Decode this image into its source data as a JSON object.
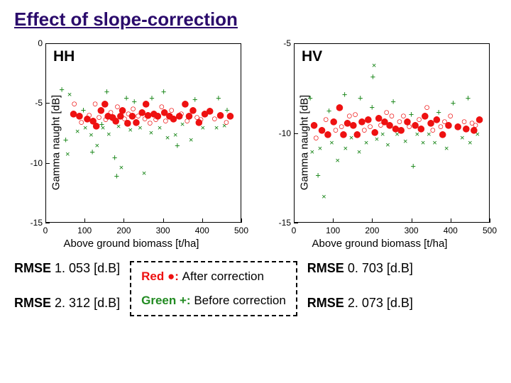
{
  "title": "Effect of slope-correction",
  "panels": [
    {
      "label": "HH",
      "ylabel": "Gamma naught [dB]",
      "xlabel": "Above ground biomass [t/ha]",
      "xlim": [
        0,
        500
      ],
      "xtick_step": 100,
      "ylim": [
        -15,
        0
      ],
      "ytick_step": 5
    },
    {
      "label": "HV",
      "ylabel": "Gamma naught [dB]",
      "xlabel": "Above ground biomass [t/ha]",
      "xlim": [
        0,
        500
      ],
      "xtick_step": 100,
      "ylim": [
        -15,
        -5
      ],
      "ytick_step": 5
    }
  ],
  "markers": {
    "plus": {
      "glyph": "+",
      "color": "#228b22",
      "meaning": "before-correction-1"
    },
    "x": {
      "glyph": "×",
      "color": "#228b22",
      "meaning": "before-correction-2"
    },
    "dot": {
      "glyph": "●",
      "color": "#ee1111",
      "meaning": "after-correction-filled"
    },
    "o": {
      "glyph": "○",
      "color": "#ee1111",
      "meaning": "after-correction-open"
    }
  },
  "points": {
    "HH": [
      {
        "x": 40,
        "y": -3.8,
        "m": "plus"
      },
      {
        "x": 50,
        "y": -8.0,
        "m": "plus"
      },
      {
        "x": 55,
        "y": -9.2,
        "m": "x"
      },
      {
        "x": 60,
        "y": -4.2,
        "m": "x"
      },
      {
        "x": 70,
        "y": -5.8,
        "m": "dot"
      },
      {
        "x": 72,
        "y": -5.0,
        "m": "o"
      },
      {
        "x": 80,
        "y": -7.3,
        "m": "x"
      },
      {
        "x": 85,
        "y": -6.0,
        "m": "dot"
      },
      {
        "x": 90,
        "y": -6.5,
        "m": "o"
      },
      {
        "x": 95,
        "y": -5.5,
        "m": "plus"
      },
      {
        "x": 100,
        "y": -7.0,
        "m": "x"
      },
      {
        "x": 105,
        "y": -6.2,
        "m": "dot"
      },
      {
        "x": 110,
        "y": -5.9,
        "m": "o"
      },
      {
        "x": 115,
        "y": -7.6,
        "m": "x"
      },
      {
        "x": 118,
        "y": -9.0,
        "m": "plus"
      },
      {
        "x": 120,
        "y": -6.4,
        "m": "dot"
      },
      {
        "x": 125,
        "y": -5.0,
        "m": "o"
      },
      {
        "x": 128,
        "y": -6.8,
        "m": "dot"
      },
      {
        "x": 130,
        "y": -8.5,
        "m": "x"
      },
      {
        "x": 135,
        "y": -6.1,
        "m": "o"
      },
      {
        "x": 140,
        "y": -5.5,
        "m": "dot"
      },
      {
        "x": 142,
        "y": -6.7,
        "m": "plus"
      },
      {
        "x": 145,
        "y": -7.0,
        "m": "x"
      },
      {
        "x": 150,
        "y": -5.0,
        "m": "dot"
      },
      {
        "x": 152,
        "y": -6.3,
        "m": "o"
      },
      {
        "x": 155,
        "y": -4.0,
        "m": "plus"
      },
      {
        "x": 158,
        "y": -6.0,
        "m": "dot"
      },
      {
        "x": 160,
        "y": -7.5,
        "m": "x"
      },
      {
        "x": 165,
        "y": -5.7,
        "m": "o"
      },
      {
        "x": 170,
        "y": -6.1,
        "m": "dot"
      },
      {
        "x": 175,
        "y": -9.5,
        "m": "plus"
      },
      {
        "x": 178,
        "y": -6.4,
        "m": "dot"
      },
      {
        "x": 180,
        "y": -11.0,
        "m": "plus"
      },
      {
        "x": 182,
        "y": -5.2,
        "m": "o"
      },
      {
        "x": 185,
        "y": -6.9,
        "m": "x"
      },
      {
        "x": 190,
        "y": -6.0,
        "m": "dot"
      },
      {
        "x": 192,
        "y": -10.3,
        "m": "x"
      },
      {
        "x": 195,
        "y": -5.5,
        "m": "dot"
      },
      {
        "x": 200,
        "y": -6.2,
        "m": "o"
      },
      {
        "x": 205,
        "y": -4.5,
        "m": "plus"
      },
      {
        "x": 208,
        "y": -6.6,
        "m": "dot"
      },
      {
        "x": 210,
        "y": -5.8,
        "m": "o"
      },
      {
        "x": 215,
        "y": -7.2,
        "m": "x"
      },
      {
        "x": 220,
        "y": -6.0,
        "m": "dot"
      },
      {
        "x": 222,
        "y": -5.4,
        "m": "o"
      },
      {
        "x": 225,
        "y": -4.8,
        "m": "plus"
      },
      {
        "x": 230,
        "y": -6.5,
        "m": "dot"
      },
      {
        "x": 235,
        "y": -6.0,
        "m": "o"
      },
      {
        "x": 240,
        "y": -7.0,
        "m": "x"
      },
      {
        "x": 245,
        "y": -5.7,
        "m": "dot"
      },
      {
        "x": 250,
        "y": -10.8,
        "m": "x"
      },
      {
        "x": 252,
        "y": -6.2,
        "m": "o"
      },
      {
        "x": 255,
        "y": -5.0,
        "m": "dot"
      },
      {
        "x": 260,
        "y": -5.9,
        "m": "dot"
      },
      {
        "x": 265,
        "y": -6.6,
        "m": "o"
      },
      {
        "x": 268,
        "y": -7.4,
        "m": "x"
      },
      {
        "x": 270,
        "y": -4.5,
        "m": "plus"
      },
      {
        "x": 275,
        "y": -5.8,
        "m": "dot"
      },
      {
        "x": 280,
        "y": -6.3,
        "m": "o"
      },
      {
        "x": 285,
        "y": -6.0,
        "m": "dot"
      },
      {
        "x": 290,
        "y": -7.0,
        "m": "x"
      },
      {
        "x": 295,
        "y": -5.2,
        "m": "o"
      },
      {
        "x": 300,
        "y": -4.0,
        "m": "plus"
      },
      {
        "x": 302,
        "y": -5.7,
        "m": "dot"
      },
      {
        "x": 305,
        "y": -6.4,
        "m": "o"
      },
      {
        "x": 310,
        "y": -7.8,
        "m": "x"
      },
      {
        "x": 315,
        "y": -6.0,
        "m": "dot"
      },
      {
        "x": 320,
        "y": -5.5,
        "m": "o"
      },
      {
        "x": 325,
        "y": -6.2,
        "m": "dot"
      },
      {
        "x": 330,
        "y": -7.6,
        "m": "x"
      },
      {
        "x": 335,
        "y": -8.5,
        "m": "plus"
      },
      {
        "x": 340,
        "y": -6.0,
        "m": "dot"
      },
      {
        "x": 345,
        "y": -5.8,
        "m": "o"
      },
      {
        "x": 348,
        "y": -6.7,
        "m": "x"
      },
      {
        "x": 355,
        "y": -5.0,
        "m": "dot"
      },
      {
        "x": 360,
        "y": -6.4,
        "m": "o"
      },
      {
        "x": 365,
        "y": -6.0,
        "m": "dot"
      },
      {
        "x": 370,
        "y": -8.0,
        "m": "x"
      },
      {
        "x": 375,
        "y": -5.5,
        "m": "dot"
      },
      {
        "x": 380,
        "y": -4.6,
        "m": "plus"
      },
      {
        "x": 385,
        "y": -6.1,
        "m": "o"
      },
      {
        "x": 390,
        "y": -6.5,
        "m": "dot"
      },
      {
        "x": 395,
        "y": -6.3,
        "m": "o"
      },
      {
        "x": 400,
        "y": -7.0,
        "m": "x"
      },
      {
        "x": 405,
        "y": -5.8,
        "m": "dot"
      },
      {
        "x": 418,
        "y": -5.6,
        "m": "dot"
      },
      {
        "x": 430,
        "y": -6.2,
        "m": "o"
      },
      {
        "x": 435,
        "y": -7.0,
        "m": "x"
      },
      {
        "x": 440,
        "y": -4.5,
        "m": "plus"
      },
      {
        "x": 445,
        "y": -5.9,
        "m": "dot"
      },
      {
        "x": 455,
        "y": -6.8,
        "m": "x"
      },
      {
        "x": 460,
        "y": -6.5,
        "m": "o"
      },
      {
        "x": 462,
        "y": -5.5,
        "m": "plus"
      },
      {
        "x": 470,
        "y": -6.0,
        "m": "dot"
      }
    ],
    "HV": [
      {
        "x": 40,
        "y": -8.0,
        "m": "plus"
      },
      {
        "x": 45,
        "y": -11.0,
        "m": "x"
      },
      {
        "x": 50,
        "y": -9.5,
        "m": "dot"
      },
      {
        "x": 55,
        "y": -10.2,
        "m": "o"
      },
      {
        "x": 60,
        "y": -12.3,
        "m": "plus"
      },
      {
        "x": 65,
        "y": -10.8,
        "m": "x"
      },
      {
        "x": 70,
        "y": -9.8,
        "m": "dot"
      },
      {
        "x": 75,
        "y": -13.5,
        "m": "x"
      },
      {
        "x": 80,
        "y": -9.2,
        "m": "o"
      },
      {
        "x": 85,
        "y": -10.0,
        "m": "dot"
      },
      {
        "x": 88,
        "y": -8.7,
        "m": "plus"
      },
      {
        "x": 95,
        "y": -10.5,
        "m": "x"
      },
      {
        "x": 100,
        "y": -9.3,
        "m": "dot"
      },
      {
        "x": 105,
        "y": -9.8,
        "m": "o"
      },
      {
        "x": 110,
        "y": -11.5,
        "m": "x"
      },
      {
        "x": 115,
        "y": -8.5,
        "m": "dot"
      },
      {
        "x": 120,
        "y": -9.6,
        "m": "o"
      },
      {
        "x": 125,
        "y": -10.0,
        "m": "dot"
      },
      {
        "x": 128,
        "y": -7.8,
        "m": "plus"
      },
      {
        "x": 130,
        "y": -10.8,
        "m": "x"
      },
      {
        "x": 135,
        "y": -9.4,
        "m": "dot"
      },
      {
        "x": 140,
        "y": -9.0,
        "m": "o"
      },
      {
        "x": 145,
        "y": -10.2,
        "m": "x"
      },
      {
        "x": 150,
        "y": -9.5,
        "m": "dot"
      },
      {
        "x": 155,
        "y": -8.9,
        "m": "o"
      },
      {
        "x": 160,
        "y": -10.0,
        "m": "dot"
      },
      {
        "x": 165,
        "y": -11.0,
        "m": "x"
      },
      {
        "x": 168,
        "y": -8.0,
        "m": "plus"
      },
      {
        "x": 172,
        "y": -9.3,
        "m": "dot"
      },
      {
        "x": 178,
        "y": -9.8,
        "m": "o"
      },
      {
        "x": 183,
        "y": -10.5,
        "m": "x"
      },
      {
        "x": 188,
        "y": -9.2,
        "m": "dot"
      },
      {
        "x": 193,
        "y": -9.6,
        "m": "o"
      },
      {
        "x": 198,
        "y": -8.5,
        "m": "plus"
      },
      {
        "x": 200,
        "y": -6.8,
        "m": "plus"
      },
      {
        "x": 203,
        "y": -6.2,
        "m": "x"
      },
      {
        "x": 205,
        "y": -9.9,
        "m": "dot"
      },
      {
        "x": 210,
        "y": -10.3,
        "m": "x"
      },
      {
        "x": 215,
        "y": -9.1,
        "m": "dot"
      },
      {
        "x": 220,
        "y": -9.5,
        "m": "o"
      },
      {
        "x": 225,
        "y": -10.0,
        "m": "x"
      },
      {
        "x": 230,
        "y": -9.3,
        "m": "dot"
      },
      {
        "x": 235,
        "y": -8.8,
        "m": "o"
      },
      {
        "x": 238,
        "y": -10.6,
        "m": "x"
      },
      {
        "x": 243,
        "y": -9.5,
        "m": "dot"
      },
      {
        "x": 248,
        "y": -9.0,
        "m": "o"
      },
      {
        "x": 252,
        "y": -8.2,
        "m": "plus"
      },
      {
        "x": 258,
        "y": -9.7,
        "m": "dot"
      },
      {
        "x": 262,
        "y": -10.0,
        "m": "x"
      },
      {
        "x": 268,
        "y": -9.3,
        "m": "o"
      },
      {
        "x": 272,
        "y": -9.8,
        "m": "dot"
      },
      {
        "x": 278,
        "y": -9.0,
        "m": "o"
      },
      {
        "x": 283,
        "y": -10.4,
        "m": "x"
      },
      {
        "x": 288,
        "y": -9.3,
        "m": "dot"
      },
      {
        "x": 293,
        "y": -9.6,
        "m": "o"
      },
      {
        "x": 298,
        "y": -8.9,
        "m": "plus"
      },
      {
        "x": 303,
        "y": -11.8,
        "m": "plus"
      },
      {
        "x": 308,
        "y": -9.5,
        "m": "dot"
      },
      {
        "x": 313,
        "y": -10.0,
        "m": "x"
      },
      {
        "x": 318,
        "y": -9.2,
        "m": "o"
      },
      {
        "x": 323,
        "y": -9.7,
        "m": "dot"
      },
      {
        "x": 328,
        "y": -10.5,
        "m": "x"
      },
      {
        "x": 333,
        "y": -9.0,
        "m": "dot"
      },
      {
        "x": 338,
        "y": -8.5,
        "m": "o"
      },
      {
        "x": 343,
        "y": -10.0,
        "m": "x"
      },
      {
        "x": 348,
        "y": -9.4,
        "m": "dot"
      },
      {
        "x": 353,
        "y": -9.8,
        "m": "o"
      },
      {
        "x": 358,
        "y": -10.5,
        "m": "x"
      },
      {
        "x": 363,
        "y": -9.2,
        "m": "dot"
      },
      {
        "x": 368,
        "y": -8.8,
        "m": "plus"
      },
      {
        "x": 373,
        "y": -9.6,
        "m": "o"
      },
      {
        "x": 378,
        "y": -10.0,
        "m": "dot"
      },
      {
        "x": 383,
        "y": -9.3,
        "m": "o"
      },
      {
        "x": 388,
        "y": -10.8,
        "m": "x"
      },
      {
        "x": 393,
        "y": -9.5,
        "m": "dot"
      },
      {
        "x": 398,
        "y": -9.0,
        "m": "o"
      },
      {
        "x": 405,
        "y": -8.3,
        "m": "plus"
      },
      {
        "x": 417,
        "y": -9.6,
        "m": "dot"
      },
      {
        "x": 428,
        "y": -10.2,
        "m": "x"
      },
      {
        "x": 433,
        "y": -9.3,
        "m": "o"
      },
      {
        "x": 438,
        "y": -9.7,
        "m": "dot"
      },
      {
        "x": 443,
        "y": -8.0,
        "m": "plus"
      },
      {
        "x": 448,
        "y": -10.5,
        "m": "x"
      },
      {
        "x": 453,
        "y": -9.4,
        "m": "o"
      },
      {
        "x": 458,
        "y": -9.8,
        "m": "dot"
      },
      {
        "x": 462,
        "y": -9.5,
        "m": "o"
      },
      {
        "x": 467,
        "y": -10.0,
        "m": "x"
      },
      {
        "x": 472,
        "y": -9.2,
        "m": "dot"
      }
    ]
  },
  "rmse": {
    "left_top": {
      "label": "RMSE",
      "value": "1. 053",
      "unit": "[d.B]"
    },
    "left_bot": {
      "label": "RMSE",
      "value": "2. 312",
      "unit": "[d.B]"
    },
    "right_top": {
      "label": "RMSE",
      "value": "0. 703",
      "unit": "[d.B]"
    },
    "right_bot": {
      "label": "RMSE",
      "value": "2. 073",
      "unit": "[d.B]"
    }
  },
  "legend": {
    "red_label": "Red",
    "red_marker": "●:",
    "red_text": "After correction",
    "green_label": "Green",
    "green_marker": "+:",
    "green_text": "Before correction"
  }
}
